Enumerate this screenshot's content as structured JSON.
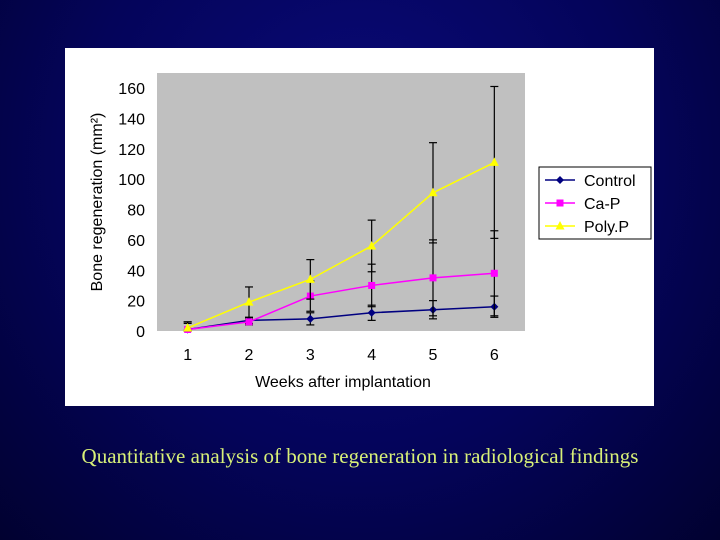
{
  "caption": "Quantitative analysis of bone regeneration in radiological findings",
  "chart_data": {
    "type": "line",
    "title": "",
    "xlabel": "Weeks after implantation",
    "ylabel": "Bone regeneration (mm²)",
    "x": [
      1,
      2,
      3,
      4,
      5,
      6
    ],
    "ylim": [
      0,
      160
    ],
    "yticks": [
      0,
      20,
      40,
      60,
      80,
      100,
      120,
      140,
      160
    ],
    "grid": false,
    "legend_position": "right",
    "plot_background": "#c0c0c0",
    "series": [
      {
        "name": "Control",
        "color": "#000080",
        "marker": "diamond",
        "values": [
          1,
          7,
          8,
          12,
          14,
          16
        ],
        "error": [
          5,
          2,
          4,
          5,
          6,
          7
        ]
      },
      {
        "name": "Ca-P",
        "color": "#ff00ff",
        "marker": "square",
        "values": [
          1,
          6,
          23,
          30,
          35,
          38
        ],
        "error": [
          4,
          2,
          10,
          14,
          25,
          28
        ]
      },
      {
        "name": "Poly.P",
        "color": "#ffff00",
        "marker": "triangle",
        "values": [
          2,
          19,
          34,
          56,
          91,
          111
        ],
        "error": [
          4,
          10,
          13,
          17,
          33,
          50
        ]
      }
    ]
  }
}
